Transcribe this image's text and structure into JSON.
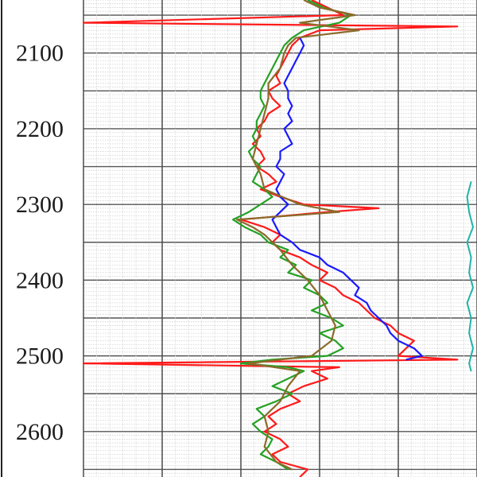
{
  "chart_data": {
    "type": "line",
    "orientation": "vertical-depth",
    "y_ticks": [
      "2100",
      "2200",
      "2300",
      "2400",
      "2500",
      "2600"
    ],
    "ylim": [
      2030,
      2660
    ],
    "xlim": [
      0,
      1
    ],
    "grid": true,
    "legend": "none",
    "y_inverted": true,
    "series": [
      {
        "color": "#ff1a1a",
        "depth": [
          2030,
          2040,
          2050,
          2060,
          2065,
          2070,
          2080,
          2090,
          2100,
          2110,
          2120,
          2130,
          2140,
          2150,
          2160,
          2170,
          2180,
          2190,
          2200,
          2210,
          2220,
          2230,
          2240,
          2250,
          2260,
          2270,
          2280,
          2290,
          2300,
          2305,
          2310,
          2320,
          2330,
          2340,
          2350,
          2360,
          2370,
          2380,
          2390,
          2400,
          2410,
          2420,
          2430,
          2440,
          2450,
          2460,
          2470,
          2480,
          2490,
          2500,
          2505,
          2510,
          2515,
          2520,
          2530,
          2540,
          2550,
          2560,
          2570,
          2580,
          2590,
          2600,
          2610,
          2620,
          2630,
          2640,
          2650,
          2660
        ],
        "values": [
          0.58,
          0.62,
          0.66,
          0.0,
          0.95,
          0.6,
          0.55,
          0.53,
          0.52,
          0.51,
          0.5,
          0.49,
          0.5,
          0.47,
          0.48,
          0.5,
          0.47,
          0.46,
          0.44,
          0.45,
          0.43,
          0.45,
          0.46,
          0.44,
          0.47,
          0.49,
          0.45,
          0.5,
          0.56,
          0.75,
          0.62,
          0.4,
          0.46,
          0.5,
          0.48,
          0.5,
          0.55,
          0.58,
          0.62,
          0.6,
          0.64,
          0.66,
          0.7,
          0.72,
          0.74,
          0.78,
          0.8,
          0.84,
          0.82,
          0.8,
          0.95,
          0.0,
          0.65,
          0.58,
          0.62,
          0.56,
          0.52,
          0.55,
          0.5,
          0.47,
          0.49,
          0.46,
          0.5,
          0.52,
          0.48,
          0.5,
          0.57,
          0.55
        ]
      },
      {
        "color": "#1a1aff",
        "depth": [
          2080,
          2090,
          2100,
          2110,
          2120,
          2130,
          2140,
          2150,
          2160,
          2170,
          2180,
          2190,
          2200,
          2210,
          2220,
          2230,
          2240,
          2250,
          2260,
          2270,
          2280,
          2290,
          2300,
          2310,
          2320,
          2330,
          2340,
          2350,
          2360,
          2370,
          2380,
          2390,
          2400,
          2410,
          2420,
          2430,
          2440,
          2450,
          2460,
          2470,
          2480,
          2490,
          2500,
          2505
        ],
        "values": [
          0.55,
          0.56,
          0.55,
          0.54,
          0.53,
          0.52,
          0.51,
          0.52,
          0.52,
          0.53,
          0.52,
          0.53,
          0.51,
          0.52,
          0.53,
          0.5,
          0.5,
          0.49,
          0.51,
          0.5,
          0.49,
          0.5,
          0.52,
          0.5,
          0.48,
          0.49,
          0.5,
          0.53,
          0.55,
          0.6,
          0.62,
          0.66,
          0.68,
          0.7,
          0.69,
          0.72,
          0.73,
          0.75,
          0.77,
          0.78,
          0.8,
          0.84,
          0.86,
          0.82
        ]
      },
      {
        "color": "#25a125",
        "depth": [
          2030,
          2040,
          2050,
          2060,
          2070,
          2080,
          2090,
          2100,
          2110,
          2120,
          2130,
          2140,
          2150,
          2160,
          2170,
          2180,
          2190,
          2200,
          2210,
          2220,
          2230,
          2240,
          2250,
          2260,
          2270,
          2280,
          2290,
          2300,
          2310,
          2320,
          2330,
          2340,
          2350,
          2360,
          2370,
          2380,
          2390,
          2400,
          2410,
          2420,
          2430,
          2440,
          2450,
          2460,
          2470,
          2480,
          2490,
          2500,
          2505,
          2510,
          2515,
          2520,
          2530,
          2540,
          2550,
          2560,
          2570,
          2580,
          2590,
          2600,
          2610,
          2620,
          2630,
          2640,
          2650
        ],
        "values": [
          0.57,
          0.61,
          0.68,
          0.65,
          0.56,
          0.53,
          0.51,
          0.5,
          0.49,
          0.48,
          0.47,
          0.46,
          0.45,
          0.45,
          0.46,
          0.45,
          0.44,
          0.44,
          0.43,
          0.44,
          0.42,
          0.43,
          0.45,
          0.44,
          0.43,
          0.46,
          0.48,
          0.45,
          0.42,
          0.38,
          0.41,
          0.45,
          0.47,
          0.52,
          0.5,
          0.54,
          0.52,
          0.58,
          0.56,
          0.6,
          0.62,
          0.58,
          0.63,
          0.66,
          0.6,
          0.64,
          0.66,
          0.62,
          0.48,
          0.4,
          0.52,
          0.56,
          0.52,
          0.48,
          0.53,
          0.49,
          0.44,
          0.46,
          0.43,
          0.45,
          0.48,
          0.47,
          0.45,
          0.49,
          0.52
        ]
      },
      {
        "color": "#8a6b2a",
        "depth": [
          2030,
          2040,
          2050,
          2060,
          2070,
          2080,
          2090,
          2100,
          2120,
          2140,
          2160,
          2180,
          2200,
          2220,
          2240,
          2260,
          2280,
          2300,
          2310,
          2320,
          2330,
          2340,
          2360,
          2380,
          2400,
          2420,
          2440,
          2460,
          2480,
          2500,
          2510,
          2520,
          2540,
          2560,
          2580,
          2600,
          2620,
          2640,
          2650
        ],
        "values": [
          0.56,
          0.6,
          0.69,
          0.55,
          0.7,
          0.54,
          0.52,
          0.51,
          0.5,
          0.47,
          0.47,
          0.46,
          0.45,
          0.44,
          0.43,
          0.45,
          0.46,
          0.55,
          0.65,
          0.39,
          0.43,
          0.46,
          0.5,
          0.53,
          0.57,
          0.6,
          0.62,
          0.64,
          0.63,
          0.58,
          0.42,
          0.55,
          0.52,
          0.5,
          0.46,
          0.47,
          0.46,
          0.49,
          0.53
        ]
      },
      {
        "color": "#1fb3a8",
        "depth": [
          2270,
          2290,
          2310,
          2330,
          2350,
          2370,
          2390,
          2410,
          2430,
          2450,
          2470,
          2490,
          2510,
          2520
        ],
        "values": [
          0.985,
          0.975,
          0.98,
          0.99,
          0.975,
          0.985,
          0.98,
          0.99,
          0.975,
          0.985,
          0.98,
          0.99,
          0.98,
          0.985
        ]
      }
    ]
  }
}
